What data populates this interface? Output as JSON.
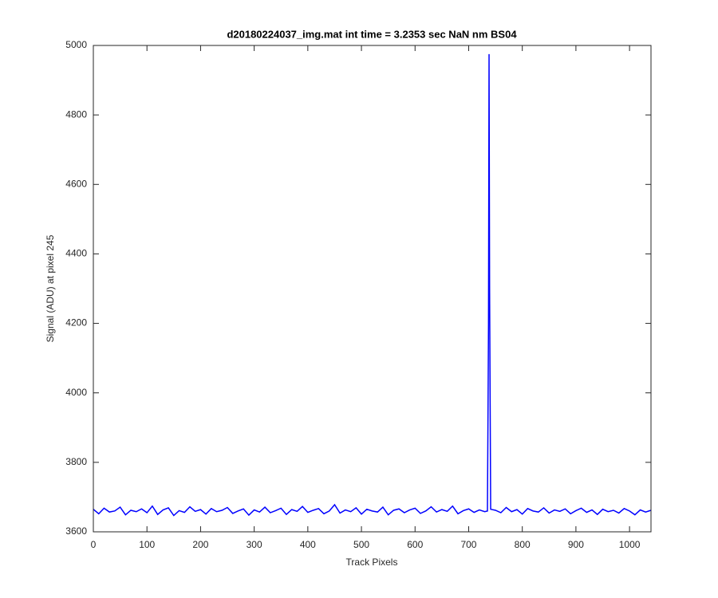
{
  "chart_data": {
    "type": "line",
    "title": "d20180224037_img.mat int time = 3.2353 sec  NaN nm BS04",
    "xlabel": "Track Pixels",
    "ylabel": "Signal (ADU) at pixel 245",
    "x": [
      0,
      10,
      20,
      30,
      40,
      50,
      60,
      70,
      80,
      90,
      100,
      110,
      120,
      130,
      140,
      150,
      160,
      170,
      180,
      190,
      200,
      210,
      220,
      230,
      240,
      250,
      260,
      270,
      280,
      290,
      300,
      310,
      320,
      330,
      340,
      350,
      360,
      370,
      380,
      390,
      400,
      410,
      420,
      430,
      440,
      450,
      460,
      470,
      480,
      490,
      500,
      510,
      520,
      530,
      540,
      550,
      560,
      570,
      580,
      590,
      600,
      610,
      620,
      630,
      640,
      650,
      660,
      670,
      680,
      690,
      700,
      710,
      720,
      730,
      735,
      737,
      738,
      739,
      741,
      750,
      760,
      770,
      780,
      790,
      800,
      810,
      820,
      830,
      840,
      850,
      860,
      870,
      880,
      890,
      900,
      910,
      920,
      930,
      940,
      950,
      960,
      970,
      980,
      990,
      1000,
      1010,
      1020,
      1030,
      1040
    ],
    "series": [
      {
        "name": "signal",
        "color": "#0000ff",
        "values": [
          3665,
          3652,
          3668,
          3657,
          3660,
          3671,
          3649,
          3662,
          3658,
          3666,
          3655,
          3674,
          3650,
          3663,
          3669,
          3647,
          3661,
          3656,
          3672,
          3659,
          3664,
          3651,
          3667,
          3658,
          3662,
          3670,
          3653,
          3660,
          3666,
          3648,
          3663,
          3657,
          3671,
          3655,
          3661,
          3668,
          3650,
          3664,
          3659,
          3673,
          3656,
          3662,
          3667,
          3652,
          3660,
          3678,
          3654,
          3663,
          3658,
          3669,
          3651,
          3665,
          3660,
          3657,
          3671,
          3649,
          3662,
          3666,
          3655,
          3663,
          3668,
          3653,
          3660,
          3672,
          3657,
          3664,
          3659,
          3674,
          3652,
          3661,
          3666,
          3656,
          3663,
          3658,
          3660,
          4200,
          4975,
          4300,
          3665,
          3662,
          3655,
          3670,
          3658,
          3664,
          3651,
          3667,
          3660,
          3657,
          3669,
          3654,
          3663,
          3659,
          3666,
          3652,
          3661,
          3668,
          3656,
          3663,
          3650,
          3665,
          3658,
          3662,
          3654,
          3667,
          3660,
          3649,
          3663,
          3657,
          3662
        ]
      }
    ],
    "xlim": [
      0,
      1040
    ],
    "ylim": [
      3600,
      5000
    ],
    "xticks": [
      0,
      100,
      200,
      300,
      400,
      500,
      600,
      700,
      800,
      900,
      1000
    ],
    "yticks": [
      3600,
      3800,
      4000,
      4200,
      4400,
      4600,
      4800,
      5000
    ]
  }
}
